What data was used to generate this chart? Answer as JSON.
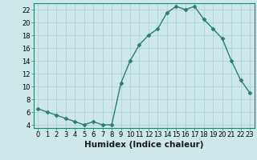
{
  "x": [
    0,
    1,
    2,
    3,
    4,
    5,
    6,
    7,
    8,
    9,
    10,
    11,
    12,
    13,
    14,
    15,
    16,
    17,
    18,
    19,
    20,
    21,
    22,
    23
  ],
  "y": [
    6.5,
    6.0,
    5.5,
    5.0,
    4.5,
    4.0,
    4.5,
    4.0,
    4.0,
    10.5,
    14.0,
    16.5,
    18.0,
    19.0,
    21.5,
    22.5,
    22.0,
    22.5,
    20.5,
    19.0,
    17.5,
    14.0,
    11.0,
    9.0
  ],
  "line_color": "#2e7d6e",
  "marker": "D",
  "marker_size": 2.5,
  "line_width": 1.0,
  "bg_color": "#cce8e8",
  "grid_color": "#aacfcf",
  "xlabel": "Humidex (Indice chaleur)",
  "xlim": [
    -0.5,
    23.5
  ],
  "ylim": [
    3.5,
    23
  ],
  "yticks": [
    4,
    6,
    8,
    10,
    12,
    14,
    16,
    18,
    20,
    22
  ],
  "xticks": [
    0,
    1,
    2,
    3,
    4,
    5,
    6,
    7,
    8,
    9,
    10,
    11,
    12,
    13,
    14,
    15,
    16,
    17,
    18,
    19,
    20,
    21,
    22,
    23
  ],
  "xlabel_fontsize": 7.5,
  "tick_fontsize": 6.0
}
